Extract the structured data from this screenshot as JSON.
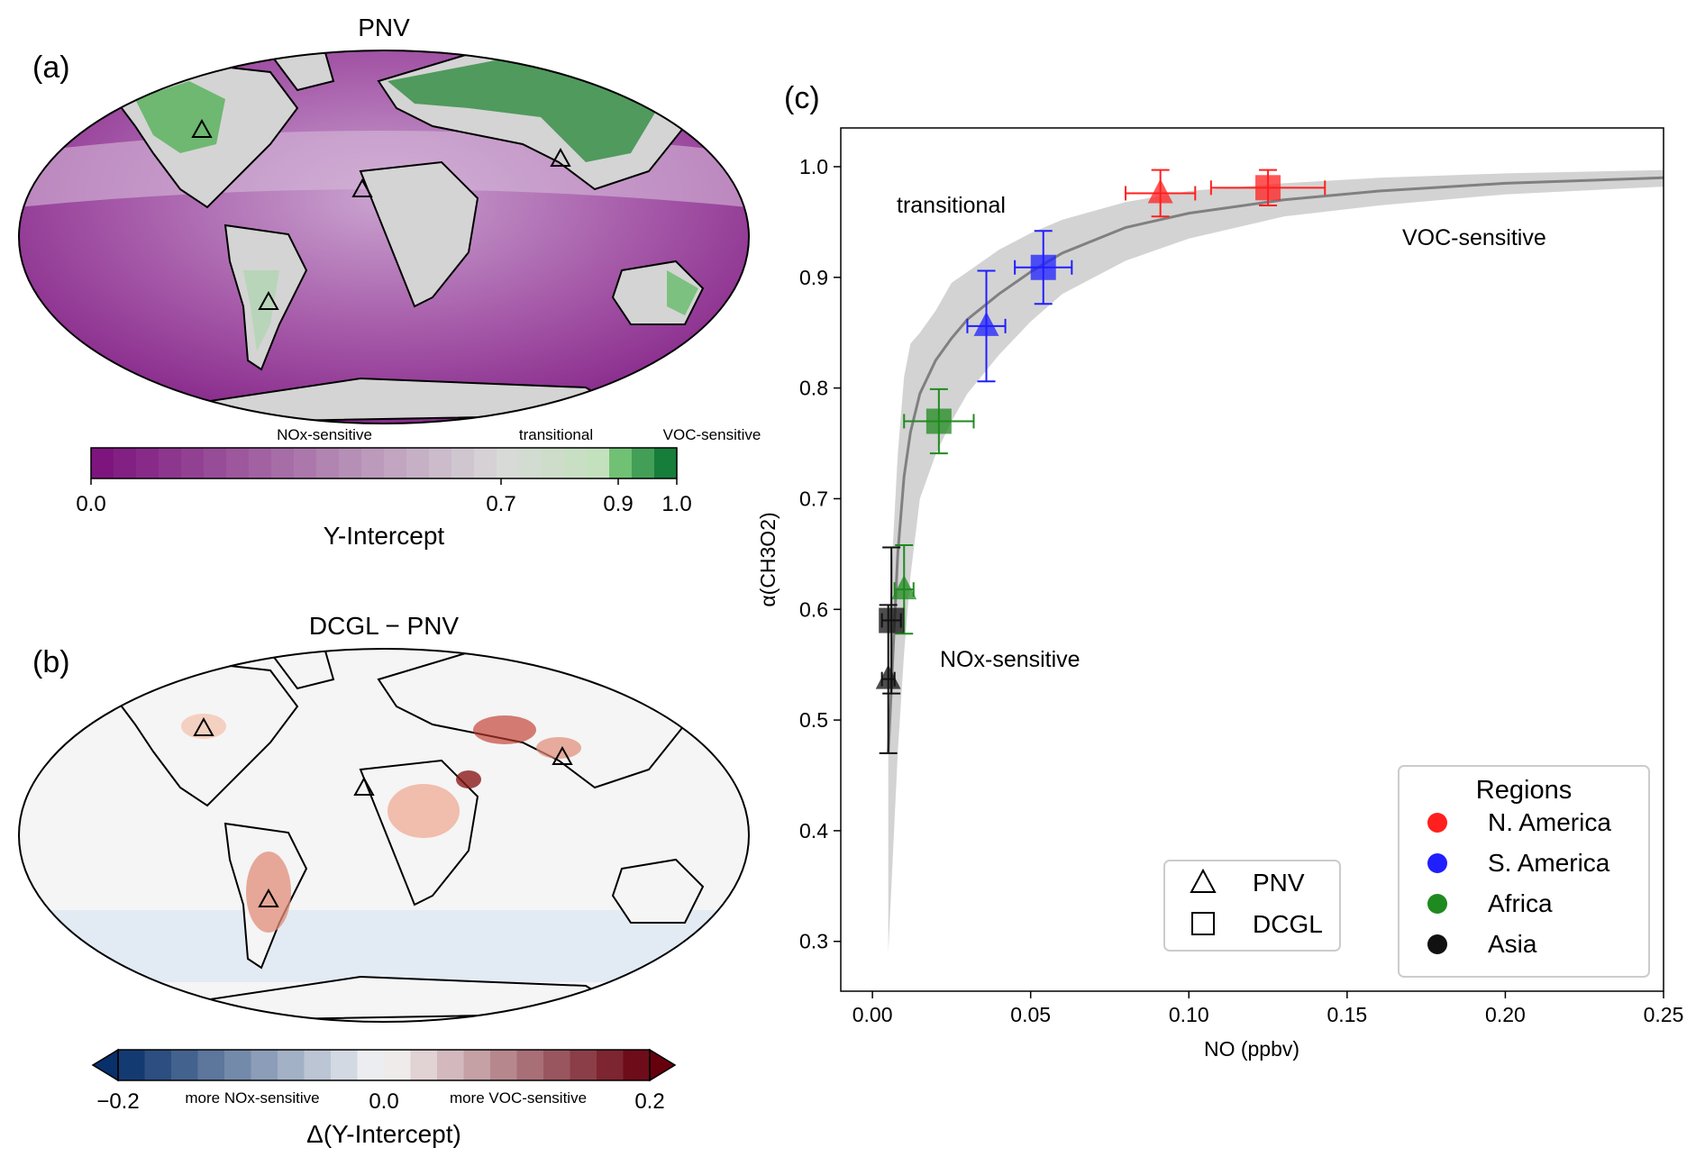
{
  "panel_a": {
    "label": "(a)",
    "title": "PNV",
    "colorbar": {
      "annotations": [
        "NOx-sensitive",
        "transitional",
        "VOC-sensitive"
      ],
      "ticks": [
        "0.0",
        "0.7",
        "0.9",
        "1.0"
      ],
      "tick_values": [
        0.0,
        0.7,
        0.9,
        1.0
      ],
      "label": "Y-Intercept",
      "range": [
        0.0,
        1.0
      ],
      "colors": {
        "low": "#7b0f7b",
        "mid": "#d9d9d9",
        "high": "#006d2c"
      }
    },
    "markers": "PNV sites (triangles)"
  },
  "panel_b": {
    "label": "(b)",
    "title": "DCGL − PNV",
    "colorbar": {
      "ticks": [
        "−0.2",
        "0.0",
        "0.2"
      ],
      "tick_values": [
        -0.2,
        0.0,
        0.2
      ],
      "annotations": [
        "more NOx-sensitive",
        "more VOC-sensitive"
      ],
      "label": "Δ(Y-Intercept)",
      "range": [
        -0.2,
        0.2
      ],
      "colors": {
        "low": "#08306b",
        "mid": "#f7f7f7",
        "high": "#67000d"
      }
    }
  },
  "panel_c": {
    "label": "(c)",
    "annotations": {
      "transitional": "transitional",
      "voc": "VOC-sensitive",
      "nox": "NOx-sensitive"
    },
    "marker_legend": {
      "pnv": "PNV",
      "dcgl": "DCGL"
    },
    "region_legend": {
      "title": "Regions"
    }
  },
  "chart_data": {
    "type": "scatter",
    "xlabel": "NO (ppbv)",
    "ylabel": "α(CH3O2)",
    "xlim": [
      -0.01,
      0.25
    ],
    "ylim": [
      0.255,
      1.035
    ],
    "xticks": [
      0.0,
      0.05,
      0.1,
      0.15,
      0.2,
      0.25
    ],
    "xtick_labels": [
      "0.00",
      "0.05",
      "0.10",
      "0.15",
      "0.20",
      "0.25"
    ],
    "yticks": [
      0.3,
      0.4,
      0.5,
      0.6,
      0.7,
      0.8,
      0.9,
      1.0
    ],
    "ytick_labels": [
      "0.3",
      "0.4",
      "0.5",
      "0.6",
      "0.7",
      "0.8",
      "0.9",
      "1.0"
    ],
    "grid": false,
    "fit_curve": {
      "x": [
        0.005,
        0.008,
        0.01,
        0.012,
        0.015,
        0.02,
        0.025,
        0.03,
        0.04,
        0.05,
        0.06,
        0.08,
        0.1,
        0.13,
        0.16,
        0.2,
        0.25
      ],
      "y": [
        0.47,
        0.65,
        0.72,
        0.76,
        0.795,
        0.825,
        0.845,
        0.862,
        0.885,
        0.905,
        0.922,
        0.945,
        0.958,
        0.97,
        0.978,
        0.985,
        0.99
      ],
      "band_low": [
        0.29,
        0.47,
        0.56,
        0.63,
        0.7,
        0.74,
        0.77,
        0.795,
        0.83,
        0.86,
        0.885,
        0.915,
        0.935,
        0.955,
        0.965,
        0.975,
        0.982
      ],
      "band_high": [
        0.58,
        0.74,
        0.81,
        0.84,
        0.85,
        0.87,
        0.895,
        0.905,
        0.925,
        0.94,
        0.952,
        0.968,
        0.978,
        0.985,
        0.99,
        0.994,
        0.997
      ]
    },
    "series": [
      {
        "name": "N. America",
        "color": "#ff1f1f",
        "points": [
          {
            "marker": "PNV",
            "x": 0.091,
            "y": 0.976,
            "xerr": 0.011,
            "yerr": 0.021
          },
          {
            "marker": "DCGL",
            "x": 0.125,
            "y": 0.981,
            "xerr": 0.018,
            "yerr": 0.016
          }
        ]
      },
      {
        "name": "S. America",
        "color": "#1f1fff",
        "points": [
          {
            "marker": "PNV",
            "x": 0.036,
            "y": 0.856,
            "xerr": 0.006,
            "yerr": 0.05
          },
          {
            "marker": "DCGL",
            "x": 0.054,
            "y": 0.909,
            "xerr": 0.009,
            "yerr": 0.033
          }
        ]
      },
      {
        "name": "Africa",
        "color": "#1f8a1f",
        "points": [
          {
            "marker": "PNV",
            "x": 0.01,
            "y": 0.618,
            "xerr": 0.003,
            "yerr": 0.04
          },
          {
            "marker": "DCGL",
            "x": 0.021,
            "y": 0.77,
            "xerr": 0.011,
            "yerr": 0.029
          }
        ]
      },
      {
        "name": "Asia",
        "color": "#111111",
        "points": [
          {
            "marker": "PNV",
            "x": 0.005,
            "y": 0.537,
            "xerr": 0.002,
            "yerr": 0.067
          },
          {
            "marker": "DCGL",
            "x": 0.006,
            "y": 0.59,
            "xerr": 0.003,
            "yerr": 0.066
          }
        ]
      }
    ]
  }
}
